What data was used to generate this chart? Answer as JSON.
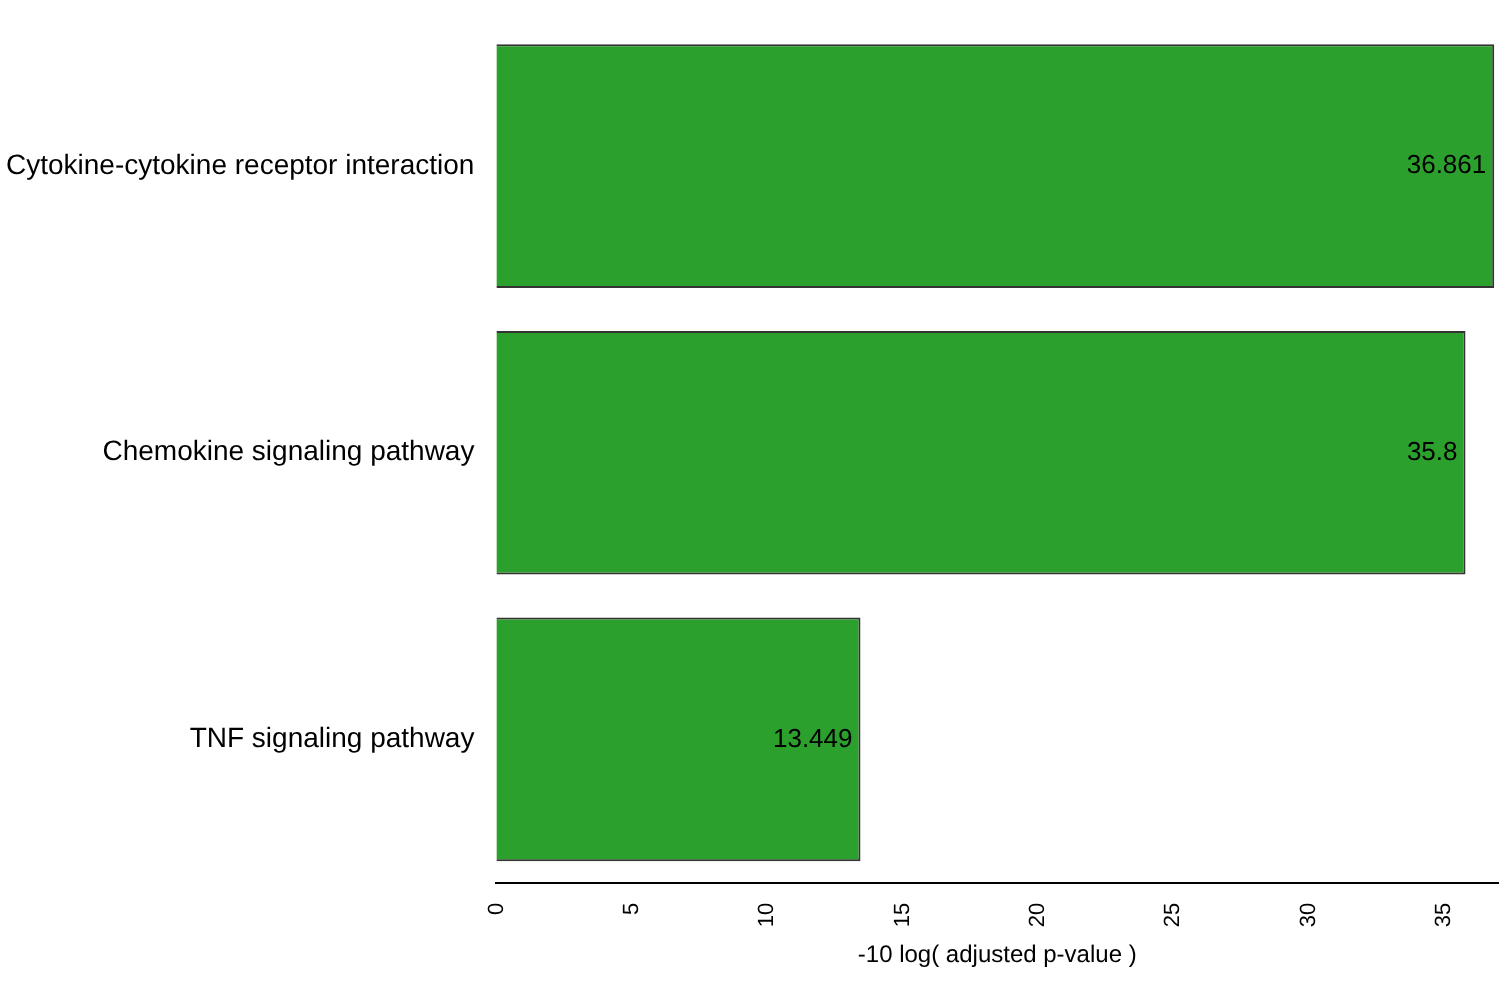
{
  "chart_data": {
    "type": "bar",
    "orientation": "horizontal",
    "categories": [
      "Cytokine-cytokine receptor interaction",
      "Chemokine signaling pathway",
      "TNF signaling pathway"
    ],
    "values": [
      36.861,
      35.8,
      13.449
    ],
    "color": "#2ca02c",
    "xlim": [
      0,
      37
    ],
    "xticks": [
      0,
      5,
      10,
      15,
      20,
      25,
      30,
      35
    ],
    "xlabel": "-10 log( adjusted p-value )",
    "data_labels": true,
    "grid": false,
    "legend": false
  }
}
